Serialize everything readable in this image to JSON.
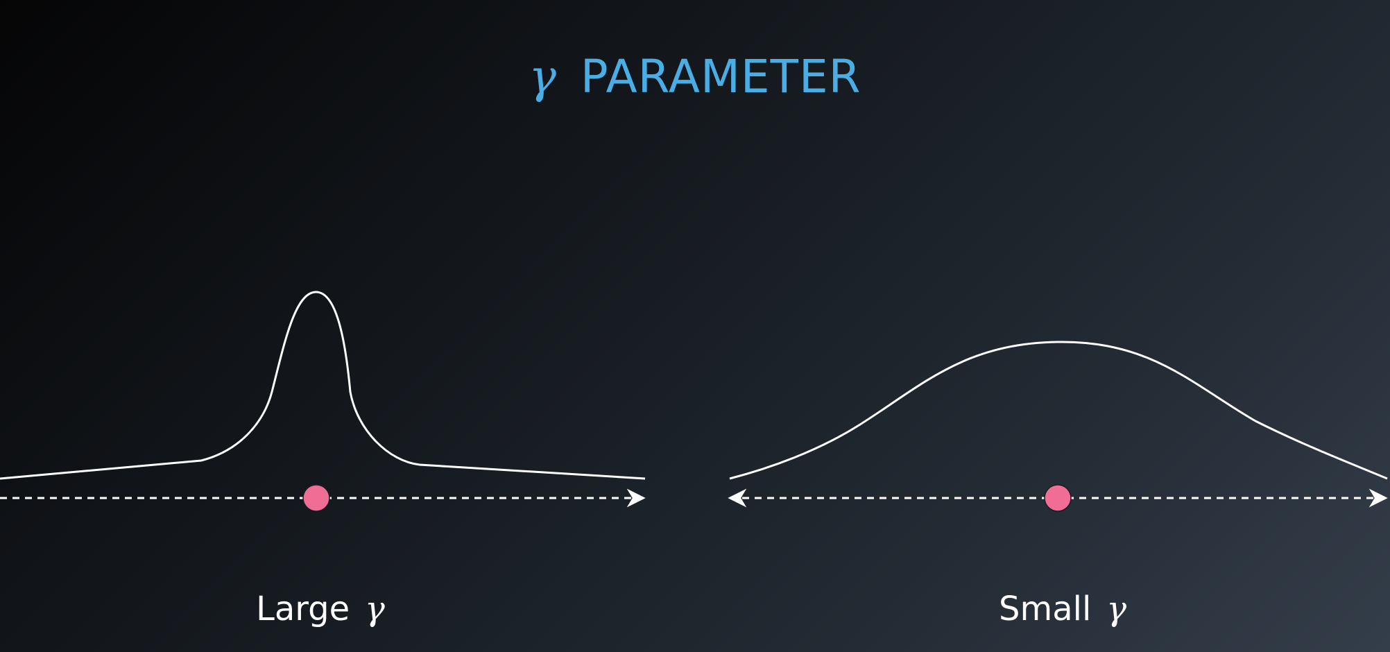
{
  "title": {
    "symbol": "γ",
    "text": "PARAMETER"
  },
  "panels": [
    {
      "label_text": "Large",
      "label_symbol": "γ"
    },
    {
      "label_text": "Small",
      "label_symbol": "γ"
    }
  ],
  "colors": {
    "title": "#4aaee6",
    "curve": "#ffffff",
    "point": "#f06e96",
    "axis": "#ffffff"
  }
}
